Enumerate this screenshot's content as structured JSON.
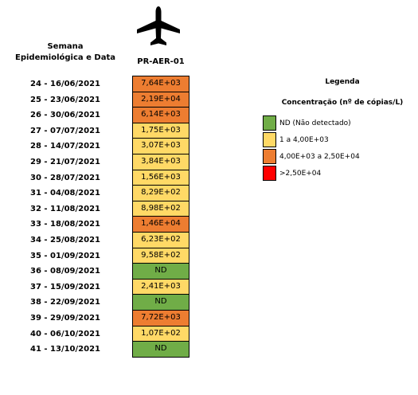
{
  "header": {
    "week_col": "Semana\nEpidemiológica e Data",
    "station": "PR-AER-01"
  },
  "colors": {
    "nd": "#70ad47",
    "low": "#ffd966",
    "mid": "#ed7d31",
    "high": "#ff0000"
  },
  "rows": [
    {
      "week": "24 - 16/06/2021",
      "value": "7,64E+03",
      "level": "mid"
    },
    {
      "week": "25 - 23/06/2021",
      "value": "2,19E+04",
      "level": "mid"
    },
    {
      "week": "26 - 30/06/2021",
      "value": "6,14E+03",
      "level": "mid"
    },
    {
      "week": "27 - 07/07/2021",
      "value": "1,75E+03",
      "level": "low"
    },
    {
      "week": "28 - 14/07/2021",
      "value": "3,07E+03",
      "level": "low"
    },
    {
      "week": "29 - 21/07/2021",
      "value": "3,84E+03",
      "level": "low"
    },
    {
      "week": "30 - 28/07/2021",
      "value": "1,56E+03",
      "level": "low"
    },
    {
      "week": "31 - 04/08/2021",
      "value": "8,29E+02",
      "level": "low"
    },
    {
      "week": "32 - 11/08/2021",
      "value": "8,98E+02",
      "level": "low"
    },
    {
      "week": "33 - 18/08/2021",
      "value": "1,46E+04",
      "level": "mid"
    },
    {
      "week": "34 - 25/08/2021",
      "value": "6,23E+02",
      "level": "low"
    },
    {
      "week": "35 - 01/09/2021",
      "value": "9,58E+02",
      "level": "low"
    },
    {
      "week": "36 - 08/09/2021",
      "value": "ND",
      "level": "nd"
    },
    {
      "week": "37 - 15/09/2021",
      "value": "2,41E+03",
      "level": "low"
    },
    {
      "week": "38 - 22/09/2021",
      "value": "ND",
      "level": "nd"
    },
    {
      "week": "39 - 29/09/2021",
      "value": "7,72E+03",
      "level": "mid"
    },
    {
      "week": "40 - 06/10/2021",
      "value": "1,07E+02",
      "level": "low"
    },
    {
      "week": "41 - 13/10/2021",
      "value": "ND",
      "level": "nd"
    }
  ],
  "legend": {
    "title": "Legenda",
    "subtitle": "Concentração (nº de cópias/L)",
    "items": [
      {
        "label": "ND (Não detectado)",
        "level": "nd"
      },
      {
        "label": "1 a 4,00E+03",
        "level": "low"
      },
      {
        "label": "4,00E+03 a 2,50E+04",
        "level": "mid"
      },
      {
        "label": ">2,50E+04",
        "level": "high"
      }
    ]
  },
  "icon": "airplane-icon"
}
